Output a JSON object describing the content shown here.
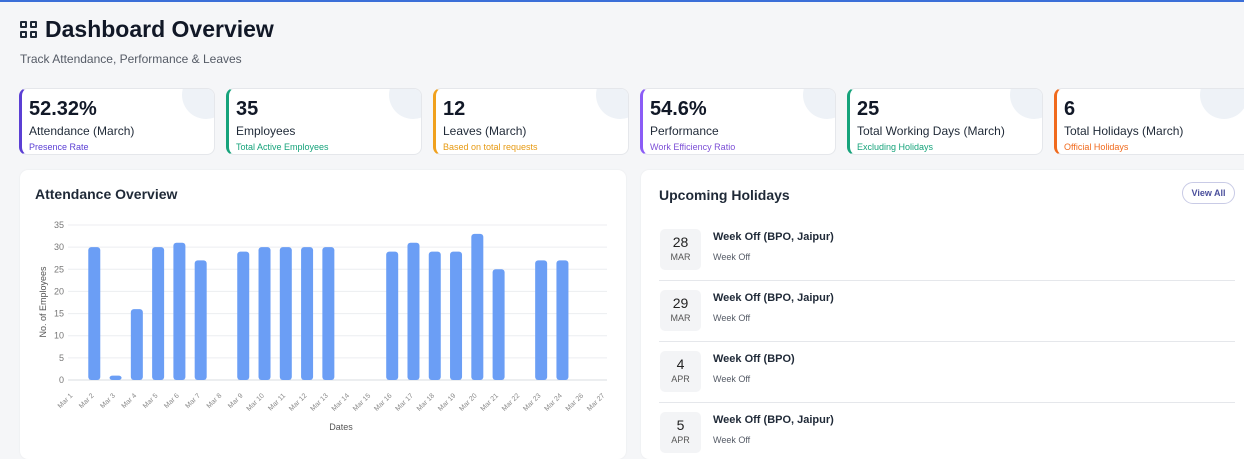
{
  "header": {
    "title": "Dashboard Overview",
    "subtitle": "Track Attendance, Performance & Leaves",
    "icon": "dashboard-grid-icon"
  },
  "stats": [
    {
      "value": "52.32%",
      "label": "Attendance (March)",
      "sub": "Presence Rate",
      "color": "#5b3fd4",
      "sub_color": "#5b3fd4"
    },
    {
      "value": "35",
      "label": "Employees",
      "sub": "Total Active Employees",
      "color": "#16a37b",
      "sub_color": "#16a37b"
    },
    {
      "value": "12",
      "label": "Leaves (March)",
      "sub": "Based on total requests",
      "color": "#f0a11e",
      "sub_color": "#e79a12"
    },
    {
      "value": "54.6%",
      "label": "Performance",
      "sub": "Work Efficiency Ratio",
      "color": "#8b5cf6",
      "sub_color": "#7c4fd6"
    },
    {
      "value": "25",
      "label": "Total Working Days (March)",
      "sub": "Excluding Holidays",
      "color": "#16a37b",
      "sub_color": "#16a37b"
    },
    {
      "value": "6",
      "label": "Total Holidays (March)",
      "sub": "Official Holidays",
      "color": "#f06a1d",
      "sub_color": "#f06a1d"
    }
  ],
  "attendance_panel": {
    "title": "Attendance Overview"
  },
  "chart_data": {
    "type": "bar",
    "title": "Attendance Overview",
    "xlabel": "Dates",
    "ylabel": "No. of Employees",
    "ylim": [
      0,
      35
    ],
    "yticks": [
      0,
      5,
      10,
      15,
      20,
      25,
      30,
      35
    ],
    "grid": true,
    "bar_color": "#6b9ef5",
    "categories": [
      "Mar 1",
      "Mar 2",
      "Mar 3",
      "Mar 4",
      "Mar 5",
      "Mar 6",
      "Mar 7",
      "Mar 8",
      "Mar 9",
      "Mar 10",
      "Mar 11",
      "Mar 12",
      "Mar 13",
      "Mar 14",
      "Mar 15",
      "Mar 16",
      "Mar 17",
      "Mar 18",
      "Mar 19",
      "Mar 20",
      "Mar 21",
      "Mar 22",
      "Mar 23",
      "Mar 24",
      "Mar 26",
      "Mar 27"
    ],
    "values": [
      0,
      30,
      1,
      16,
      30,
      31,
      27,
      0,
      29,
      30,
      30,
      30,
      30,
      0,
      0,
      29,
      31,
      29,
      29,
      33,
      25,
      0,
      27,
      27,
      0,
      0
    ]
  },
  "holidays_panel": {
    "title": "Upcoming Holidays",
    "view_all_label": "View All",
    "items": [
      {
        "day": "28",
        "month": "MAR",
        "name": "Week Off (BPO, Jaipur)",
        "type": "Week Off"
      },
      {
        "day": "29",
        "month": "MAR",
        "name": "Week Off (BPO, Jaipur)",
        "type": "Week Off"
      },
      {
        "day": "4",
        "month": "APR",
        "name": "Week Off (BPO)",
        "type": "Week Off"
      },
      {
        "day": "5",
        "month": "APR",
        "name": "Week Off (BPO, Jaipur)",
        "type": "Week Off"
      }
    ]
  }
}
